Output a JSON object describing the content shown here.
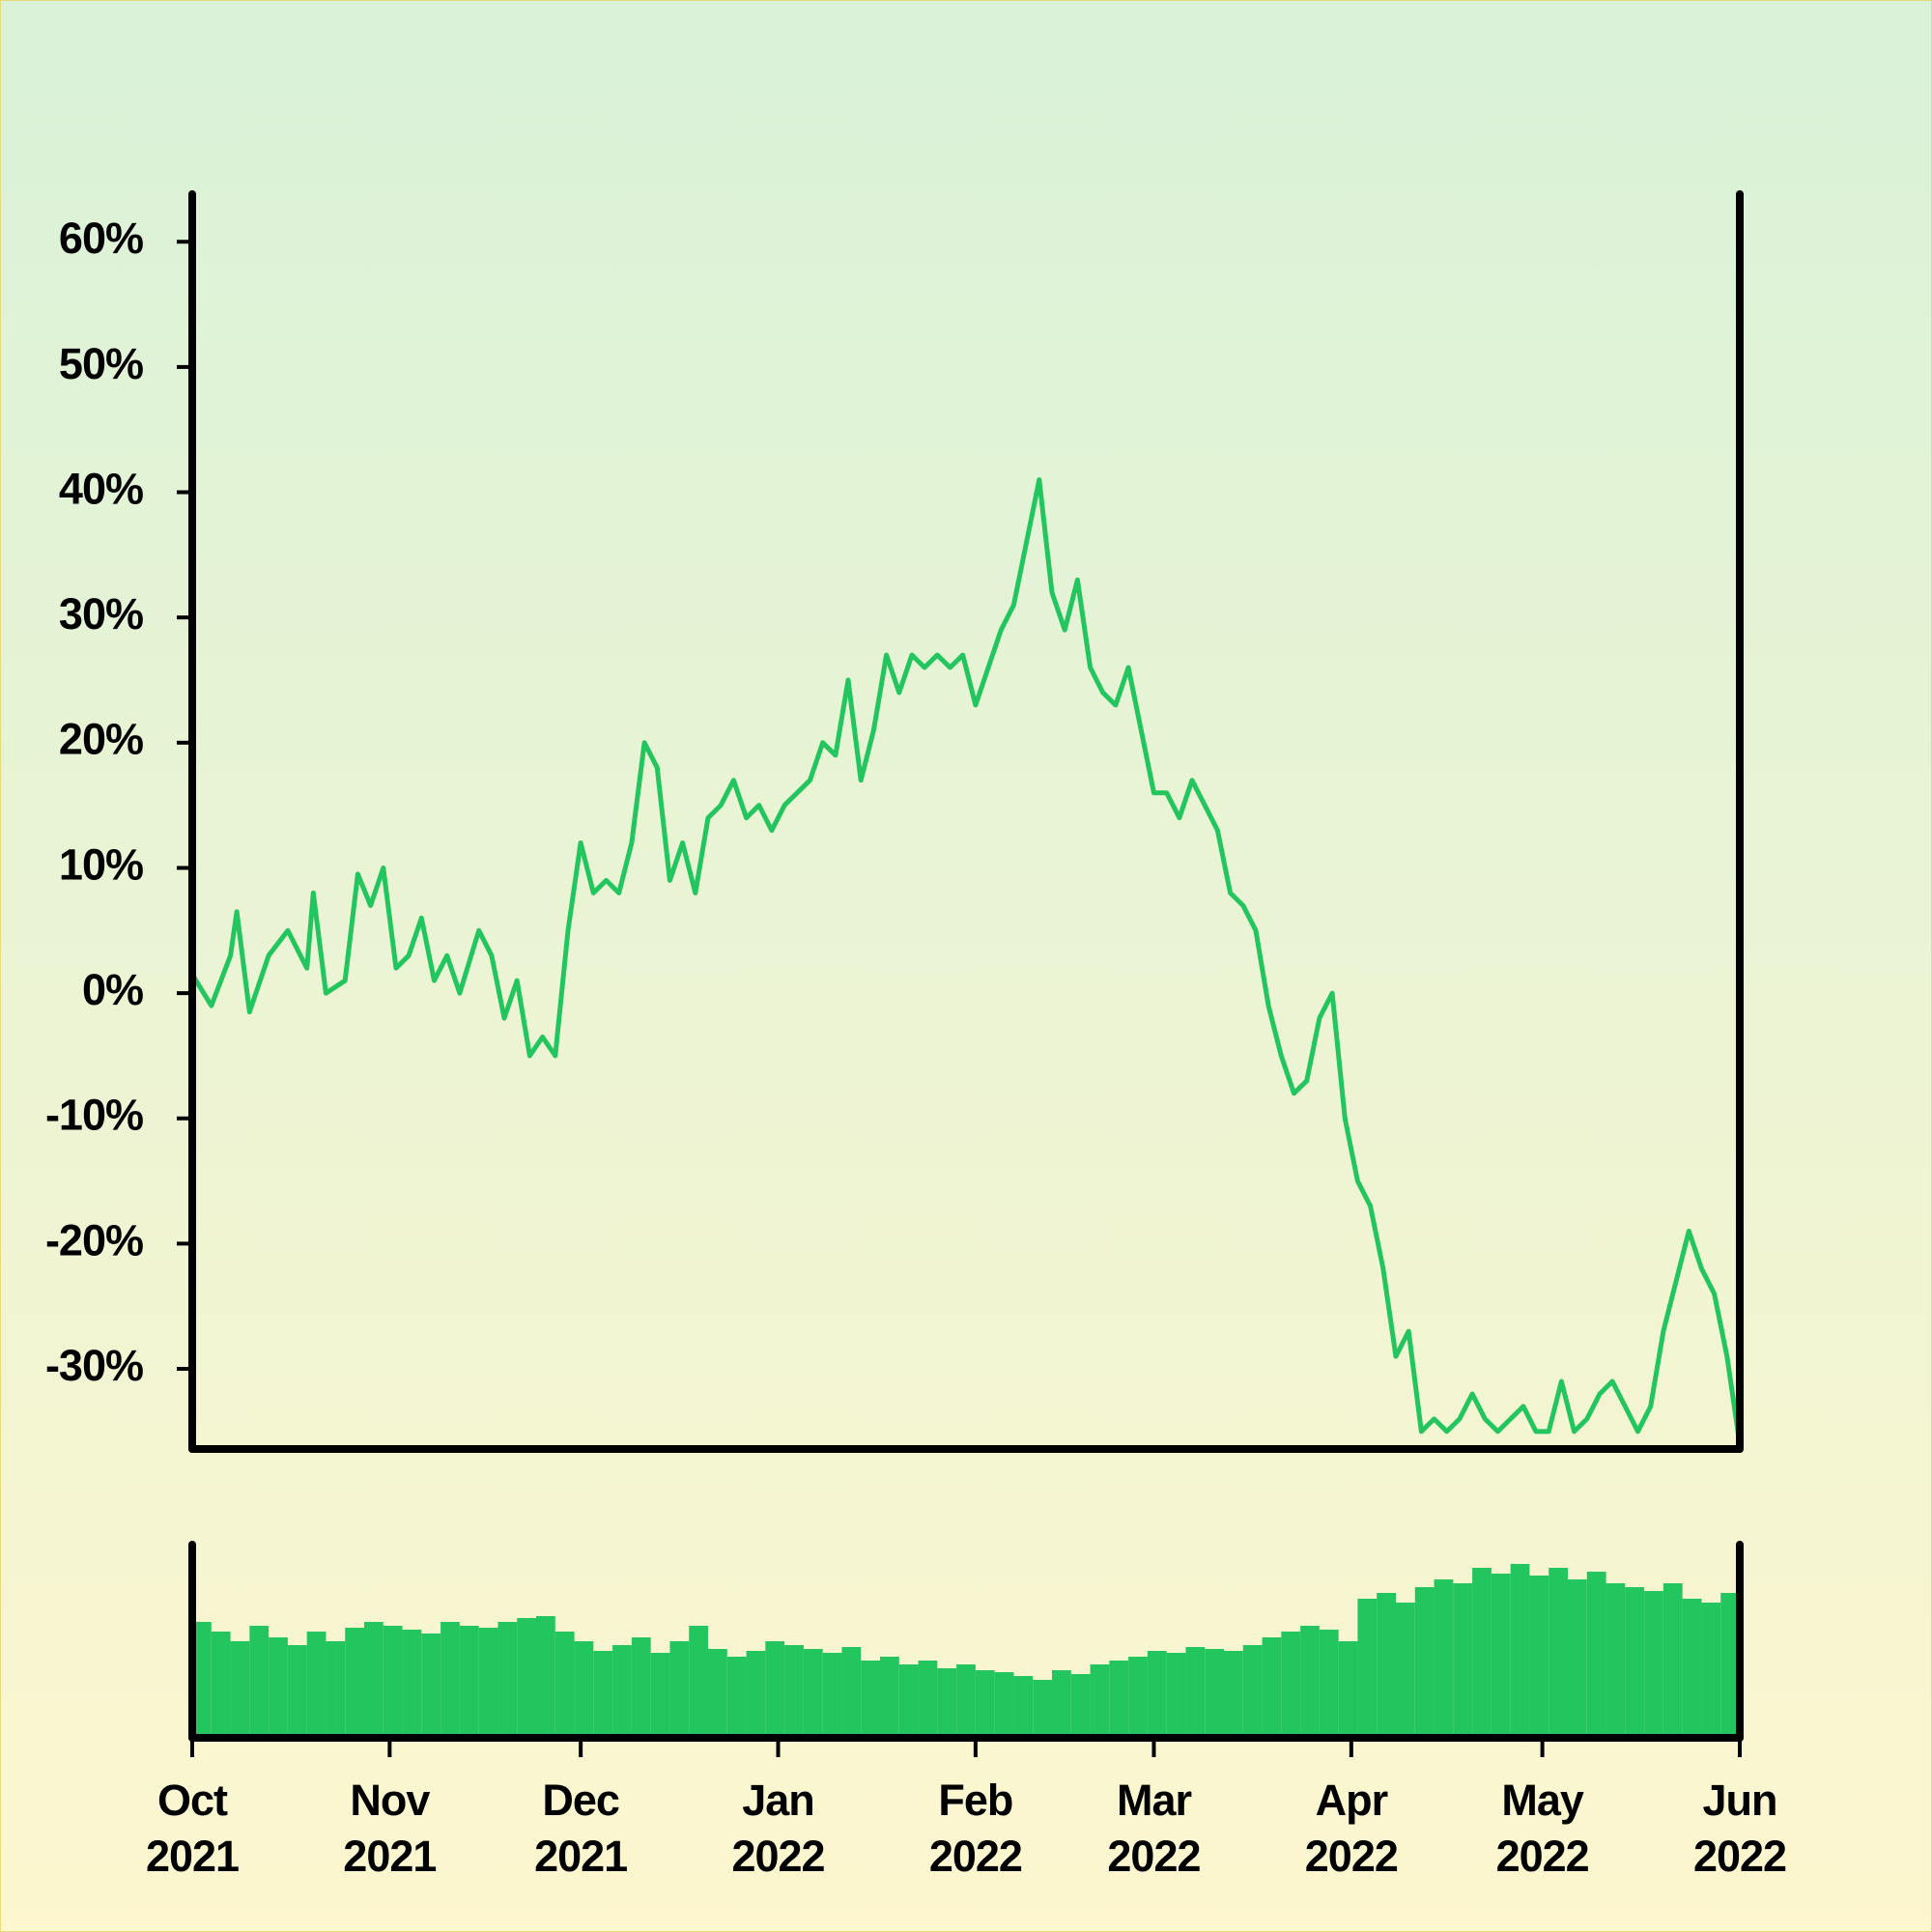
{
  "chart_data": [
    {
      "type": "line",
      "color": "#22c55e",
      "x": [
        0,
        3,
        6,
        7,
        9,
        12,
        15,
        18,
        19,
        21,
        24,
        26,
        28,
        30,
        32,
        34,
        36,
        38,
        40,
        42,
        45,
        47,
        49,
        51,
        53,
        55,
        57,
        59,
        61,
        63,
        65,
        67,
        69,
        71,
        73,
        75,
        77,
        79,
        81,
        83,
        85,
        87,
        89,
        91,
        93,
        95,
        97,
        99,
        101,
        103,
        105,
        107,
        109,
        111,
        113,
        115,
        117,
        119,
        121,
        123,
        125,
        127,
        129,
        131,
        133,
        135,
        137,
        139,
        141,
        143,
        145,
        147,
        149,
        151,
        153,
        155,
        157,
        159,
        161,
        163,
        165,
        167,
        169,
        171,
        173,
        175,
        177,
        179,
        181,
        183,
        185,
        187,
        189,
        191,
        193,
        195,
        197,
        199,
        201,
        203,
        205,
        207,
        209,
        211,
        213,
        215,
        217,
        219,
        221,
        223,
        225,
        227,
        229,
        231,
        233,
        235,
        237,
        239,
        241,
        243
      ],
      "values": [
        1.5,
        -1,
        3,
        6.5,
        -1.5,
        3,
        5,
        2,
        8,
        0,
        1,
        9.5,
        7,
        10,
        2,
        3,
        6,
        1,
        3,
        0,
        5,
        3,
        -2,
        1,
        -5,
        -3.5,
        -5,
        5,
        12,
        8,
        9,
        8,
        12,
        20,
        18,
        9,
        12,
        8,
        14,
        15,
        17,
        14,
        15,
        13,
        15,
        16,
        17,
        20,
        19,
        25,
        17,
        21,
        27,
        24,
        27,
        26,
        27,
        26,
        27,
        23,
        26,
        29,
        31,
        36,
        41,
        32,
        29,
        33,
        26,
        24,
        23,
        26,
        21,
        16,
        16,
        14,
        17,
        15,
        13,
        8,
        7,
        5,
        -1,
        -5,
        -8,
        -7,
        -2,
        0,
        -10,
        -15,
        -17,
        -22,
        -29,
        -27,
        -35,
        -34,
        -35,
        -34,
        -32,
        -34,
        -35,
        -34,
        -33,
        -35,
        -35,
        -31,
        -35,
        -34,
        -32,
        -31,
        -33,
        -35,
        -33,
        -27,
        -23,
        -19,
        -22,
        -24,
        -29,
        -36
      ],
      "xlim": [
        0,
        243
      ],
      "ylim": [
        -36.4,
        63.8
      ],
      "yticks": [
        {
          "value": -30,
          "label": "-30%"
        },
        {
          "value": -20,
          "label": "-20%"
        },
        {
          "value": -10,
          "label": "-10%"
        },
        {
          "value": 0,
          "label": "0%"
        },
        {
          "value": 10,
          "label": "10%"
        },
        {
          "value": 20,
          "label": "20%"
        },
        {
          "value": 30,
          "label": "30%"
        },
        {
          "value": 40,
          "label": "40%"
        },
        {
          "value": 50,
          "label": "50%"
        },
        {
          "value": 60,
          "label": "60%"
        }
      ]
    },
    {
      "type": "bar",
      "color": "#22c55e",
      "x": [
        0,
        3,
        6,
        9,
        12,
        15,
        18,
        21,
        24,
        27,
        30,
        33,
        36,
        39,
        42,
        45,
        48,
        51,
        54,
        57,
        60,
        63,
        66,
        69,
        72,
        75,
        78,
        81,
        84,
        87,
        90,
        93,
        96,
        99,
        102,
        105,
        108,
        111,
        114,
        117,
        120,
        123,
        126,
        129,
        132,
        135,
        138,
        141,
        144,
        147,
        150,
        153,
        156,
        159,
        162,
        165,
        168,
        171,
        174,
        177,
        180,
        183,
        186,
        189,
        192,
        195,
        198,
        201,
        204,
        207,
        210,
        213,
        216,
        219,
        222,
        225,
        228,
        231,
        234,
        237,
        240
      ],
      "values": [
        60,
        55,
        50,
        58,
        52,
        48,
        55,
        50,
        57,
        60,
        58,
        56,
        54,
        60,
        58,
        57,
        60,
        62,
        63,
        55,
        50,
        45,
        48,
        52,
        44,
        50,
        58,
        46,
        42,
        45,
        50,
        48,
        46,
        44,
        47,
        40,
        42,
        38,
        40,
        36,
        38,
        35,
        34,
        32,
        30,
        35,
        33,
        38,
        40,
        42,
        45,
        44,
        47,
        46,
        45,
        48,
        52,
        55,
        58,
        56,
        50,
        72,
        75,
        70,
        78,
        82,
        80,
        88,
        85,
        90,
        84,
        88,
        82,
        86,
        80,
        78,
        76,
        80,
        72,
        70,
        75
      ],
      "xlim": [
        0,
        243
      ],
      "ylim": [
        0,
        100
      ],
      "xticks": [
        {
          "value": 0,
          "label": "Oct\n2021"
        },
        {
          "value": 31,
          "label": "Nov\n2021"
        },
        {
          "value": 61,
          "label": "Dec\n2021"
        },
        {
          "value": 92,
          "label": "Jan\n2022"
        },
        {
          "value": 123,
          "label": "Feb\n2022"
        },
        {
          "value": 151,
          "label": "Mar\n2022"
        },
        {
          "value": 182,
          "label": "Apr\n2022"
        },
        {
          "value": 212,
          "label": "May\n2022"
        },
        {
          "value": 243,
          "label": "Jun\n2022"
        }
      ]
    }
  ]
}
